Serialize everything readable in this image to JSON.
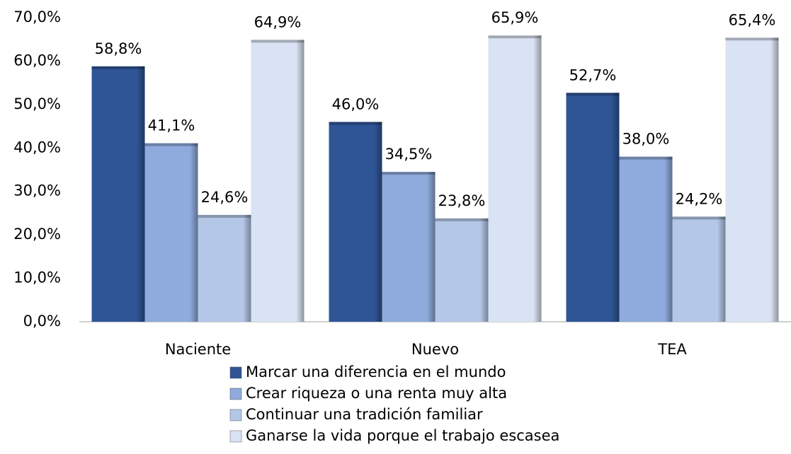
{
  "chart_data": {
    "type": "bar",
    "categories": [
      "Naciente",
      "Nuevo",
      "TEA"
    ],
    "series": [
      {
        "name": "Marcar una diferencia en el mundo",
        "color": "#2f5597",
        "values": [
          58.8,
          46.0,
          52.7
        ],
        "value_labels": [
          "58,8%",
          "46,0%",
          "52,7%"
        ]
      },
      {
        "name": "Crear riqueza o una renta muy alta",
        "color": "#8faadc",
        "values": [
          41.1,
          34.5,
          38.0
        ],
        "value_labels": [
          "41,1%",
          "34,5%",
          "38,0%"
        ]
      },
      {
        "name": "Continuar una tradición familiar",
        "color": "#b4c7e7",
        "values": [
          24.6,
          23.8,
          24.2
        ],
        "value_labels": [
          "24,6%",
          "23,8%",
          "24,2%"
        ]
      },
      {
        "name": "Ganarse la vida porque el trabajo escasea",
        "color": "#dae3f3",
        "values": [
          64.9,
          65.9,
          65.4
        ],
        "value_labels": [
          "64,9%",
          "65,9%",
          "65,4%"
        ]
      }
    ],
    "ylim": [
      0,
      70
    ],
    "yticks": [
      {
        "value": 0,
        "label": "0,0%"
      },
      {
        "value": 10,
        "label": "10,0%"
      },
      {
        "value": 20,
        "label": "20,0%"
      },
      {
        "value": 30,
        "label": "30,0%"
      },
      {
        "value": 40,
        "label": "40,0%"
      },
      {
        "value": 50,
        "label": "50,0%"
      },
      {
        "value": 60,
        "label": "60,0%"
      },
      {
        "value": 70,
        "label": "70,0%"
      }
    ],
    "grid": false,
    "legend": "bottom"
  }
}
